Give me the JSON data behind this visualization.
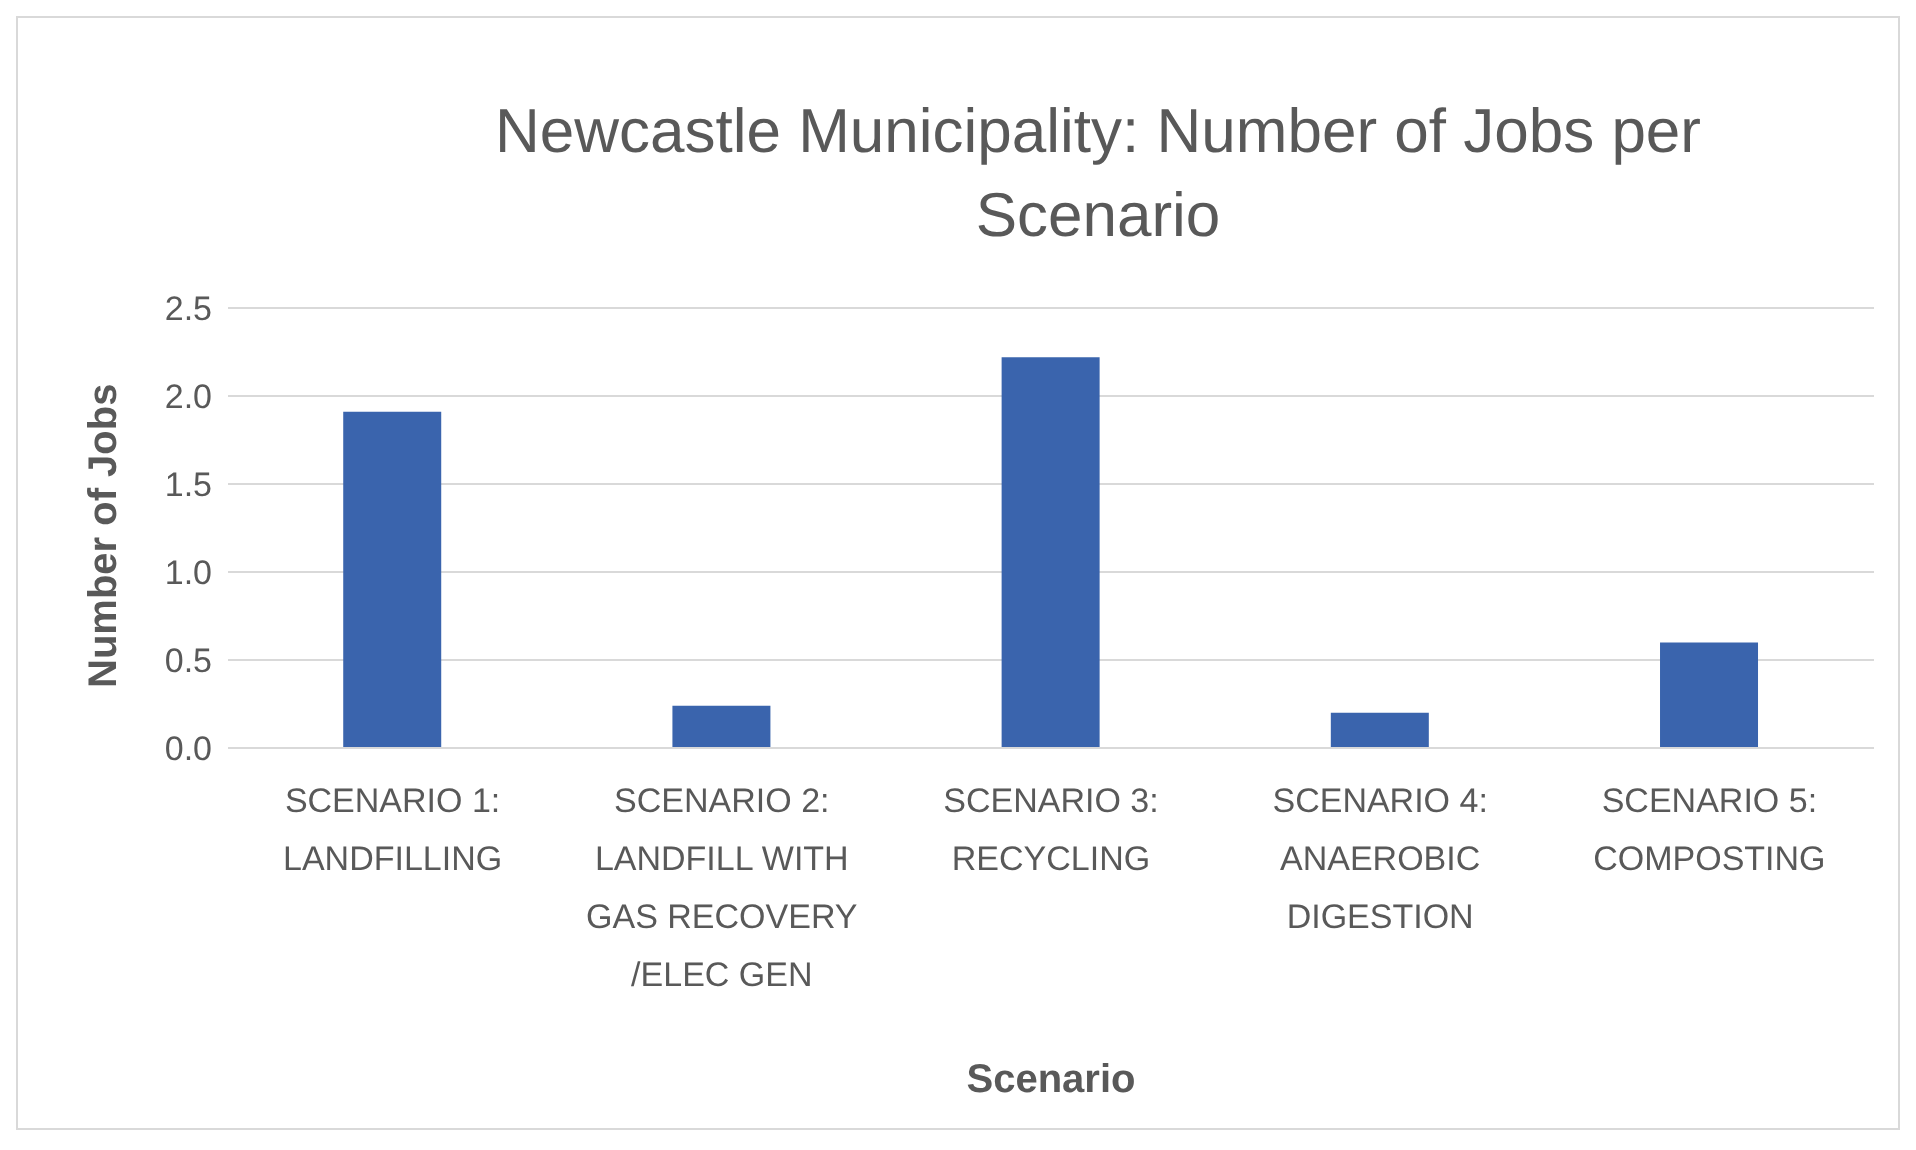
{
  "chart_data": {
    "type": "bar",
    "title": "Newcastle Municipality: Number of Jobs per Scenario",
    "xlabel": "Scenario",
    "ylabel": "Number of Jobs",
    "categories": [
      "SCENARIO 1: LANDFILLING",
      "SCENARIO 2: LANDFILL WITH GAS RECOVERY /ELEC GEN",
      "SCENARIO 3: RECYCLING",
      "SCENARIO 4: ANAEROBIC DIGESTION",
      "SCENARIO 5: COMPOSTING"
    ],
    "values": [
      1.91,
      0.24,
      2.22,
      0.2,
      0.6
    ],
    "color": "#3a64ad",
    "ylim": [
      0,
      2.5
    ],
    "yticks": [
      {
        "value": 0,
        "label": "0.0"
      },
      {
        "value": 0.5,
        "label": "0.5"
      },
      {
        "value": 1,
        "label": "1.0"
      },
      {
        "value": 1.5,
        "label": "1.5"
      },
      {
        "value": 2,
        "label": "2.0"
      },
      {
        "value": 2.5,
        "label": "2.5"
      }
    ],
    "grid": "y",
    "legend": false
  }
}
